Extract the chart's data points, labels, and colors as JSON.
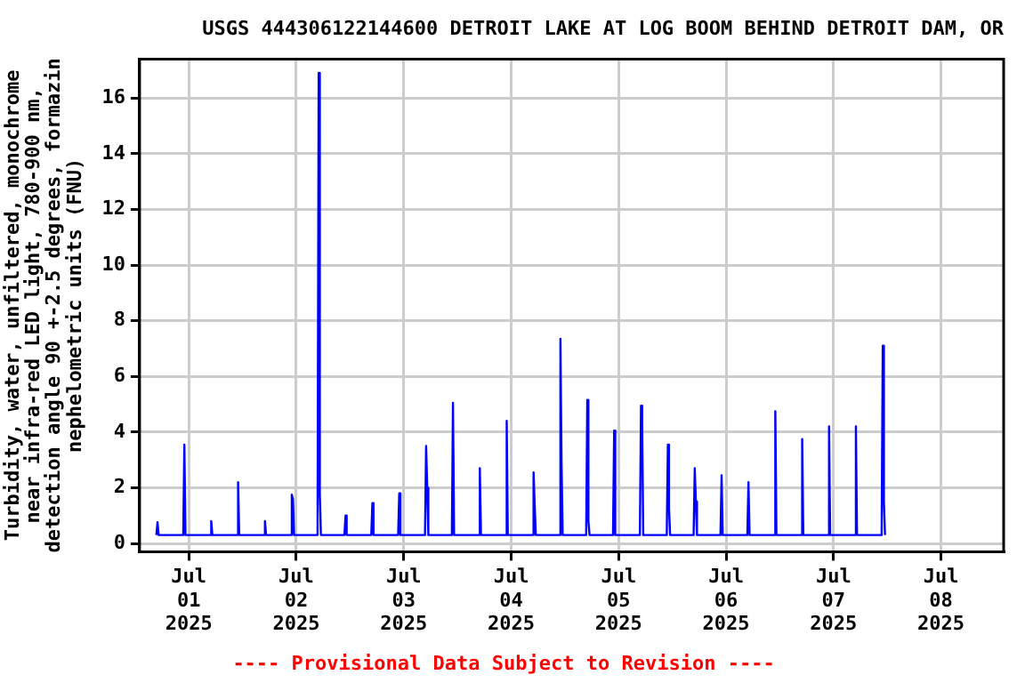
{
  "chart_data": {
    "type": "line",
    "title": "USGS 444306122144600 DETROIT LAKE AT LOG BOOM BEHIND DETROIT DAM, OR",
    "ylabel": "Turbidity, water, unfiltered, monochrome near infra-red LED light, 780-900 nm, detection angle 90 +-2.5 degrees, formazin nephelometric units (FNU)",
    "annotations": [
      "---- Provisional Data Subject to Revision ----"
    ],
    "series": [
      {
        "color": "#0000ff",
        "x": [
          "2025-06-30T16:45",
          "2025-06-30T17:00",
          "2025-06-30T17:15",
          "2025-06-30T22:45",
          "2025-06-30T23:00",
          "2025-06-30T23:15",
          "2025-07-01T04:45",
          "2025-07-01T05:00",
          "2025-07-01T05:15",
          "2025-07-01T10:45",
          "2025-07-01T11:00",
          "2025-07-01T11:15",
          "2025-07-01T16:45",
          "2025-07-01T17:00",
          "2025-07-01T17:15",
          "2025-07-01T22:45",
          "2025-07-01T23:00",
          "2025-07-01T23:15",
          "2025-07-01T23:30",
          "2025-07-02T04:45",
          "2025-07-02T05:00",
          "2025-07-02T05:15",
          "2025-07-02T05:30",
          "2025-07-02T10:45",
          "2025-07-02T11:00",
          "2025-07-02T11:15",
          "2025-07-02T16:45",
          "2025-07-02T17:00",
          "2025-07-02T17:15",
          "2025-07-02T22:45",
          "2025-07-02T23:00",
          "2025-07-02T23:15",
          "2025-07-03T04:45",
          "2025-07-03T05:00",
          "2025-07-03T05:15",
          "2025-07-03T05:30",
          "2025-07-03T10:45",
          "2025-07-03T11:00",
          "2025-07-03T11:15",
          "2025-07-03T16:45",
          "2025-07-03T17:00",
          "2025-07-03T17:15",
          "2025-07-03T22:45",
          "2025-07-03T23:00",
          "2025-07-03T23:15",
          "2025-07-04T04:45",
          "2025-07-04T05:00",
          "2025-07-04T05:15",
          "2025-07-04T05:30",
          "2025-07-04T10:45",
          "2025-07-04T11:00",
          "2025-07-04T11:15",
          "2025-07-04T11:30",
          "2025-07-04T16:45",
          "2025-07-04T17:00",
          "2025-07-04T17:15",
          "2025-07-04T17:30",
          "2025-07-04T22:45",
          "2025-07-04T23:00",
          "2025-07-04T23:15",
          "2025-07-05T04:45",
          "2025-07-05T05:00",
          "2025-07-05T05:15",
          "2025-07-05T05:30",
          "2025-07-05T10:45",
          "2025-07-05T11:00",
          "2025-07-05T11:15",
          "2025-07-05T11:30",
          "2025-07-05T16:45",
          "2025-07-05T17:00",
          "2025-07-05T17:15",
          "2025-07-05T17:30",
          "2025-07-05T22:45",
          "2025-07-05T23:00",
          "2025-07-05T23:15",
          "2025-07-06T04:45",
          "2025-07-06T05:00",
          "2025-07-06T05:15",
          "2025-07-06T10:45",
          "2025-07-06T11:00",
          "2025-07-06T11:15",
          "2025-07-06T16:45",
          "2025-07-06T17:00",
          "2025-07-06T17:15",
          "2025-07-06T22:45",
          "2025-07-06T23:00",
          "2025-07-06T23:15",
          "2025-07-07T04:45",
          "2025-07-07T05:00",
          "2025-07-07T05:15",
          "2025-07-07T10:45",
          "2025-07-07T11:00",
          "2025-07-07T11:15",
          "2025-07-07T11:30"
        ],
        "values": [
          0.3,
          0.76,
          0.3,
          0.3,
          3.55,
          0.3,
          0.3,
          0.8,
          0.3,
          0.3,
          2.2,
          0.3,
          0.3,
          0.8,
          0.3,
          0.3,
          1.75,
          1.6,
          0.3,
          0.3,
          16.9,
          1.75,
          0.3,
          0.3,
          1.0,
          0.3,
          0.3,
          1.45,
          0.3,
          0.3,
          1.8,
          0.3,
          0.3,
          3.5,
          2.0,
          0.3,
          0.3,
          5.05,
          0.3,
          0.3,
          2.7,
          0.3,
          0.3,
          4.4,
          0.3,
          0.3,
          2.55,
          1.4,
          0.3,
          0.3,
          7.35,
          2.85,
          0.3,
          0.3,
          5.15,
          0.8,
          0.3,
          0.3,
          4.05,
          0.3,
          0.3,
          4.95,
          4.25,
          0.3,
          0.3,
          3.55,
          1.25,
          0.3,
          0.3,
          2.7,
          1.5,
          0.3,
          0.3,
          2.45,
          0.3,
          0.3,
          2.2,
          0.3,
          0.3,
          4.75,
          0.3,
          0.3,
          3.75,
          0.3,
          0.3,
          4.2,
          0.3,
          0.3,
          4.2,
          0.3,
          0.3,
          7.1,
          1.5,
          0.3
        ]
      }
    ],
    "xlim": [
      "2025-06-30T13:00",
      "2025-07-08T14:00"
    ],
    "xticks": [
      {
        "value": "2025-07-01",
        "label": "Jul 01 2025"
      },
      {
        "value": "2025-07-02",
        "label": "Jul 02 2025"
      },
      {
        "value": "2025-07-03",
        "label": "Jul 03 2025"
      },
      {
        "value": "2025-07-04",
        "label": "Jul 04 2025"
      },
      {
        "value": "2025-07-05",
        "label": "Jul 05 2025"
      },
      {
        "value": "2025-07-06",
        "label": "Jul 06 2025"
      },
      {
        "value": "2025-07-07",
        "label": "Jul 07 2025"
      },
      {
        "value": "2025-07-08",
        "label": "Jul 08 2025"
      }
    ],
    "ylim": [
      -0.3,
      17.4
    ],
    "yticks": [
      0,
      2,
      4,
      6,
      8,
      10,
      12,
      14,
      16
    ],
    "grid": true,
    "legend": false,
    "marker": "none",
    "line_style": "solid"
  }
}
